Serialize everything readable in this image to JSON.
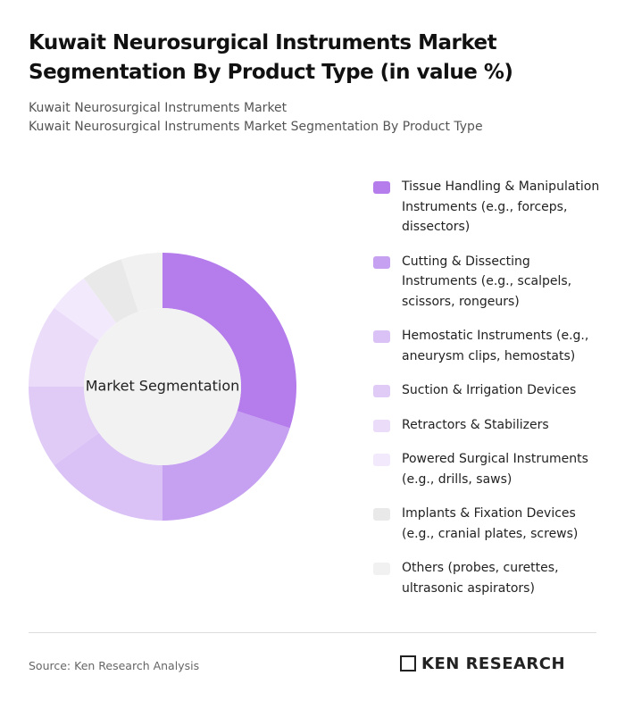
{
  "chart_data": {
    "type": "donut",
    "title": "Kuwait Neurosurgical Instruments Market Segmentation By Product Type (in value %)",
    "subtitle": [
      "Kuwait Neurosurgical Instruments Market",
      "Kuwait Neurosurgical Instruments Market Segmentation By Product Type"
    ],
    "center_label": "Market Segmentation",
    "categories": [
      "Tissue Handling & Manipulation Instruments (e.g., forceps, dissectors)",
      "Cutting & Dissecting Instruments (e.g., scalpels, scissors, rongeurs)",
      "Hemostatic Instruments (e.g., aneurysm clips, hemostats)",
      "Suction & Irrigation Devices",
      "Retractors & Stabilizers",
      "Powered Surgical Instruments (e.g., drills, saws)",
      "Implants & Fixation Devices (e.g., cranial plates, screws)",
      "Others (probes, curettes, ultrasonic aspirators)"
    ],
    "values": [
      30,
      20,
      15,
      10,
      10,
      5,
      5,
      5
    ],
    "colors": [
      "#b57cec",
      "#c6a0f1",
      "#dac2f6",
      "#e0cbf7",
      "#ebdcfa",
      "#f2eafc",
      "#e9e9e9",
      "#f1f1f1"
    ],
    "source": "Source: Ken Research Analysis",
    "brand": "KEN RESEARCH"
  }
}
